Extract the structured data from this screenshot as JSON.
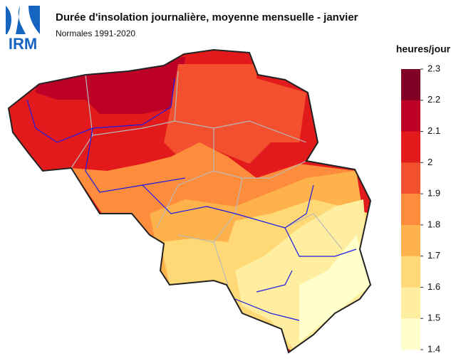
{
  "header": {
    "logo": "IRM",
    "title": "Durée d'insolation journalière, moyenne mensuelle - janvier",
    "subtitle": "Normales 1991-2020"
  },
  "legend": {
    "title": "heures/jour",
    "ticks": [
      2.3,
      2.2,
      2.1,
      2,
      1.9,
      1.8,
      1.7,
      1.6,
      1.5,
      1.4
    ],
    "colors": [
      "#800026",
      "#bd0026",
      "#e31a1c",
      "#f2502f",
      "#fd8d3c",
      "#feb24c",
      "#fed976",
      "#ffeda0",
      "#ffffcc"
    ]
  }
}
